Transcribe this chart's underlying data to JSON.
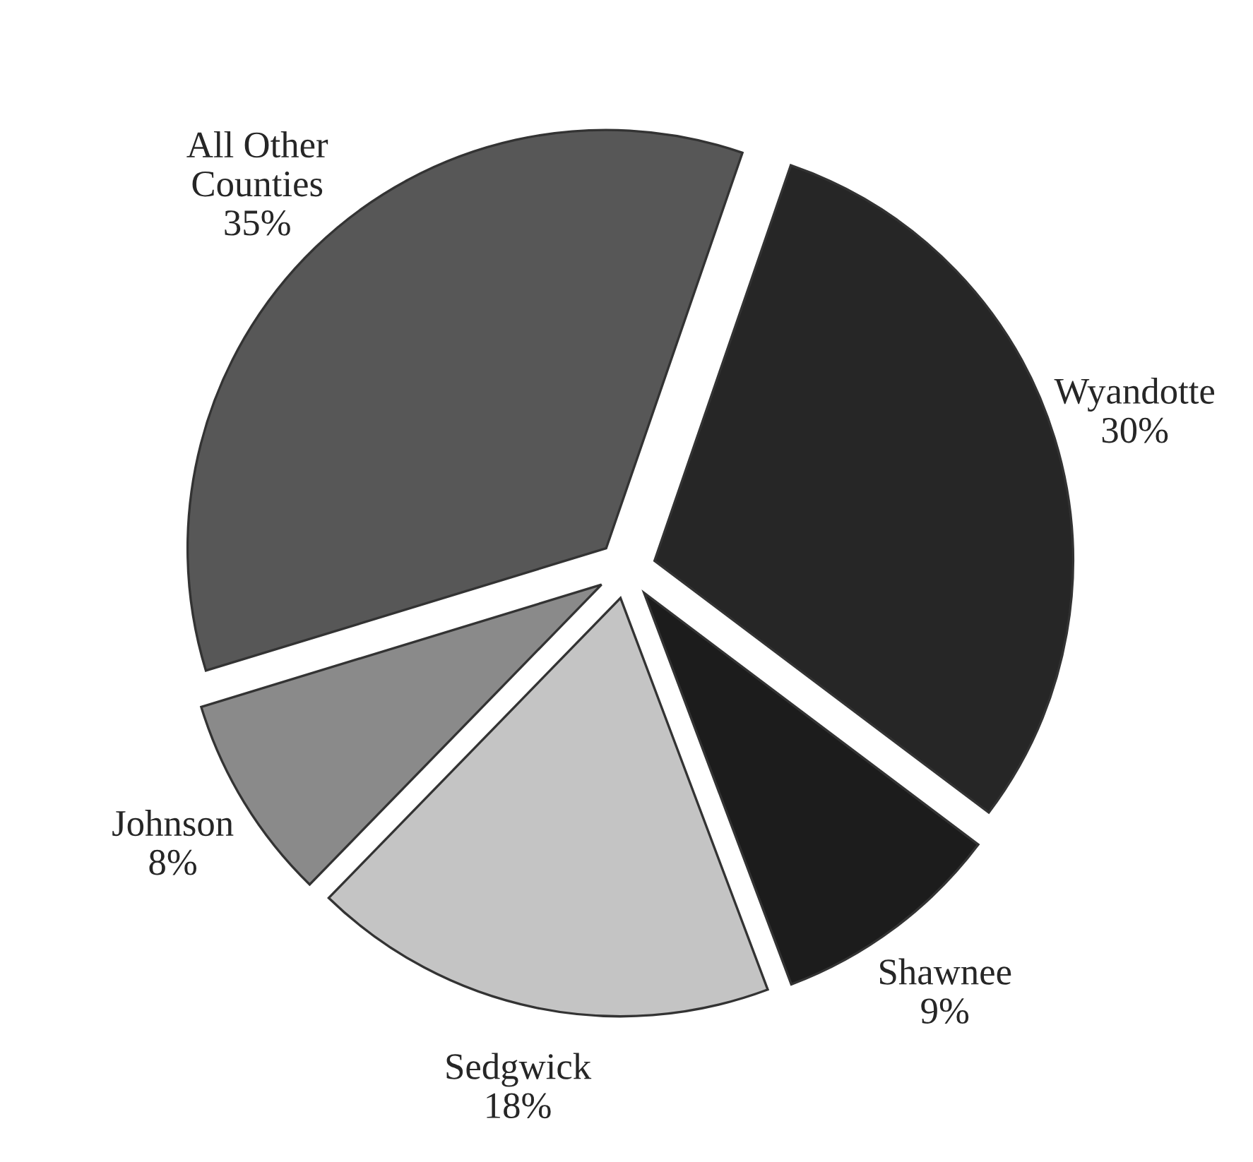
{
  "chart_data": {
    "type": "pie",
    "categories": [
      "Wyandotte",
      "Shawnee",
      "Sedgwick",
      "Johnson",
      "All Other\nCounties"
    ],
    "values": [
      30,
      9,
      18,
      8,
      35
    ],
    "value_labels": [
      "30%",
      "9%",
      "18%",
      "8%",
      "35%"
    ],
    "colors": [
      "#262626",
      "#1c1c1c",
      "#c4c4c4",
      "#8a8a8a",
      "#575757"
    ],
    "legend": false
  }
}
